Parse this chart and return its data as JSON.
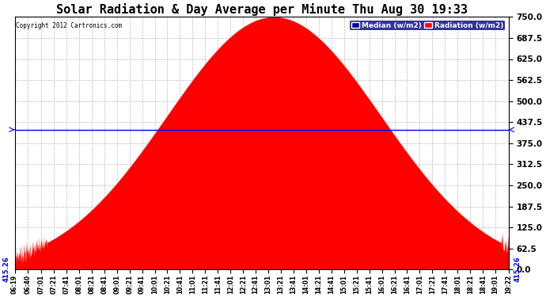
{
  "title": "Solar Radiation & Day Average per Minute Thu Aug 30 19:33",
  "copyright": "Copyright 2012 Cartronics.com",
  "median_value": 415.26,
  "median_label": "415.26",
  "ylim": [
    0,
    750
  ],
  "yticks": [
    0.0,
    62.5,
    125.0,
    187.5,
    250.0,
    312.5,
    375.0,
    437.5,
    500.0,
    562.5,
    625.0,
    687.5,
    750.0
  ],
  "fill_color": "#ff0000",
  "background_color": "#ffffff",
  "plot_bg_color": "#ffffff",
  "grid_color": "#bbbbbb",
  "median_line_color": "#0000ff",
  "legend_median_bg": "#0000aa",
  "legend_radiation_bg": "#ff0000",
  "title_fontsize": 11,
  "x_tick_labels": [
    "06:19",
    "06:40",
    "07:01",
    "07:21",
    "07:41",
    "08:01",
    "08:21",
    "08:41",
    "09:01",
    "09:21",
    "09:41",
    "10:01",
    "10:21",
    "10:41",
    "11:01",
    "11:21",
    "11:41",
    "12:01",
    "12:21",
    "12:41",
    "13:01",
    "13:21",
    "13:41",
    "14:01",
    "14:21",
    "14:41",
    "15:01",
    "15:21",
    "15:41",
    "16:01",
    "16:21",
    "16:41",
    "17:01",
    "17:21",
    "17:41",
    "18:01",
    "18:21",
    "18:41",
    "19:01",
    "19:22"
  ],
  "peak_minutes": 790,
  "sigma": 170.0,
  "peak_value": 750.0,
  "noise_std": 6.0,
  "noise_seed": 7
}
